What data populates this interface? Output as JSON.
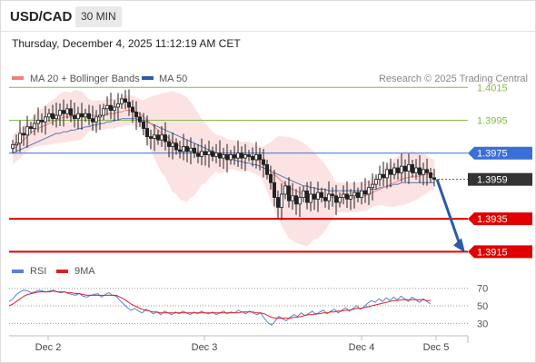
{
  "header": {
    "symbol": "USD/CAD",
    "timeframe": "30 MIN",
    "datetime": "Thursday, December 4, 2025 11:12:19 AM CET"
  },
  "legend": {
    "ma20_label": "MA 20 + Bollinger Bands",
    "ma20_color": "#f08080",
    "ma50_label": "MA 50",
    "ma50_color": "#2f5aa8",
    "credit": "Research © 2025 Trading Central"
  },
  "rsi_legend": {
    "rsi_label": "RSI",
    "rsi_color": "#5b7fd6",
    "ma9_label": "9MA",
    "ma9_color": "#e02020"
  },
  "chart_data": [
    {
      "type": "candlestick",
      "ylim": [
        1.3908,
        1.4024
      ],
      "x_ticks": [
        "Dec 2",
        "Dec 3",
        "Dec 4",
        "Dec 5"
      ],
      "levels": [
        {
          "value": 1.4015,
          "label": "1.4015",
          "kind": "resistance-light",
          "color": "#86b94a"
        },
        {
          "value": 1.3995,
          "label": "1.3995",
          "kind": "resistance-light",
          "color": "#86b94a"
        },
        {
          "value": 1.3975,
          "label": "1.3975",
          "kind": "pivot",
          "color": "#3a6fd8"
        },
        {
          "value": 1.3959,
          "label": "1.3959",
          "kind": "last-price",
          "color": "#333333"
        },
        {
          "value": 1.3935,
          "label": "1.3935",
          "kind": "support",
          "color": "#e00000"
        },
        {
          "value": 1.3915,
          "label": "1.3915",
          "kind": "support",
          "color": "#e00000"
        }
      ],
      "arrow": {
        "from": 1.3959,
        "to": 1.3915,
        "color": "#2a5aa8"
      },
      "close": [
        1.398,
        1.3981,
        1.3987,
        1.3986,
        1.3991,
        1.399,
        1.3993,
        1.3995,
        1.3994,
        1.3997,
        1.3999,
        1.3996,
        1.3998,
        1.4001,
        1.3999,
        1.4002,
        1.3998,
        1.3996,
        1.3999,
        1.3997,
        1.3999,
        1.3996,
        1.3994,
        1.3997,
        1.3998,
        1.4002,
        1.4004,
        1.4001,
        1.4003,
        1.4005,
        1.4008,
        1.4006,
        1.4003,
        1.4,
        1.3997,
        1.3994,
        1.399,
        1.3985,
        1.3984,
        1.3986,
        1.3983,
        1.3986,
        1.3982,
        1.3979,
        1.3981,
        1.3977,
        1.3976,
        1.3979,
        1.3976,
        1.3978,
        1.3975,
        1.3973,
        1.3976,
        1.3974,
        1.3976,
        1.3973,
        1.3975,
        1.3972,
        1.3974,
        1.3971,
        1.3974,
        1.3972,
        1.3975,
        1.3972,
        1.3974,
        1.3973,
        1.3971,
        1.3974,
        1.3971,
        1.3968,
        1.3962,
        1.3957,
        1.3948,
        1.3942,
        1.395,
        1.3955,
        1.3946,
        1.3949,
        1.3944,
        1.3948,
        1.3952,
        1.3945,
        1.395,
        1.3947,
        1.3951,
        1.3948,
        1.3946,
        1.395,
        1.3949,
        1.3945,
        1.3948,
        1.395,
        1.3947,
        1.3949,
        1.3951,
        1.3948,
        1.3952,
        1.395,
        1.3954,
        1.3956,
        1.3959,
        1.3962,
        1.396,
        1.3965,
        1.3962,
        1.3966,
        1.3963,
        1.3967,
        1.3964,
        1.3968,
        1.3963,
        1.3966,
        1.3962,
        1.3965,
        1.3963,
        1.396,
        1.3959
      ],
      "ma20": [
        1.3977,
        1.3979,
        1.3981,
        1.3983,
        1.3985,
        1.3987,
        1.3989,
        1.399,
        1.3991,
        1.3992,
        1.3993,
        1.3994,
        1.3995,
        1.3996,
        1.3997,
        1.3997,
        1.3997,
        1.3998,
        1.3998,
        1.3998,
        1.3998,
        1.3998,
        1.3998,
        1.3998,
        1.3998,
        1.3998,
        1.3999,
        1.3999,
        1.3999,
        1.4,
        1.4,
        1.4001,
        1.4001,
        1.4001,
        1.4,
        1.3999,
        1.3997,
        1.3995,
        1.3993,
        1.3991,
        1.3989,
        1.3987,
        1.3986,
        1.3984,
        1.3982,
        1.3981,
        1.3979,
        1.3978,
        1.3977,
        1.3977,
        1.3976,
        1.3976,
        1.3976,
        1.3975,
        1.3975,
        1.3975,
        1.3975,
        1.3974,
        1.3974,
        1.3974,
        1.3974,
        1.3974,
        1.3973,
        1.3973,
        1.3973,
        1.3973,
        1.3972,
        1.3971,
        1.397,
        1.3968,
        1.3966,
        1.3964,
        1.3962,
        1.396,
        1.3958,
        1.3956,
        1.3954,
        1.3953,
        1.3952,
        1.3951,
        1.395,
        1.3949,
        1.3949,
        1.3949,
        1.3948,
        1.3948,
        1.3948,
        1.3948,
        1.3948,
        1.3948,
        1.3948,
        1.3948,
        1.3948,
        1.3948,
        1.3948,
        1.3948,
        1.3949,
        1.3949,
        1.395,
        1.3951,
        1.3952,
        1.3953,
        1.3954,
        1.3955,
        1.3956,
        1.3957,
        1.3958,
        1.3959,
        1.396,
        1.396,
        1.3961,
        1.3961,
        1.3961,
        1.3962,
        1.3962,
        1.3962,
        1.3962
      ],
      "ma50": [
        1.3975,
        1.3976,
        1.3977,
        1.3978,
        1.3979,
        1.398,
        1.3981,
        1.3982,
        1.3983,
        1.3984,
        1.3985,
        1.3986,
        1.3987,
        1.3987,
        1.3988,
        1.3988,
        1.3989,
        1.3989,
        1.399,
        1.399,
        1.3991,
        1.3991,
        1.3992,
        1.3992,
        1.3993,
        1.3993,
        1.3994,
        1.3994,
        1.3995,
        1.3995,
        1.3996,
        1.3996,
        1.3996,
        1.3996,
        1.3996,
        1.3995,
        1.3995,
        1.3994,
        1.3993,
        1.3992,
        1.3991,
        1.399,
        1.3989,
        1.3988,
        1.3987,
        1.3986,
        1.3985,
        1.3984,
        1.3983,
        1.3982,
        1.3981,
        1.398,
        1.3979,
        1.3978,
        1.3977,
        1.3976,
        1.3975,
        1.3974,
        1.3973,
        1.3972,
        1.3971,
        1.3971,
        1.397,
        1.397,
        1.3969,
        1.3969,
        1.3968,
        1.3968,
        1.3967,
        1.3966,
        1.3965,
        1.3964,
        1.3963,
        1.3962,
        1.3961,
        1.396,
        1.3959,
        1.3958,
        1.3957,
        1.3956,
        1.3955,
        1.3955,
        1.3954,
        1.3954,
        1.3953,
        1.3953,
        1.3953,
        1.3952,
        1.3952,
        1.3952,
        1.3952,
        1.3952,
        1.3952,
        1.3952,
        1.3952,
        1.3952,
        1.3952,
        1.3952,
        1.3953,
        1.3953,
        1.3953,
        1.3954,
        1.3954,
        1.3955,
        1.3955,
        1.3956,
        1.3956,
        1.3957,
        1.3957,
        1.3957,
        1.3957,
        1.3957,
        1.3957,
        1.3957,
        1.3957,
        1.3957,
        1.3957
      ]
    },
    {
      "type": "line",
      "ylim": [
        20,
        78
      ],
      "ticks": [
        30,
        50,
        70
      ],
      "tick_labels": [
        "30",
        "50",
        "70"
      ],
      "series": [
        {
          "name": "RSI",
          "values": [
            55,
            58,
            63,
            66,
            68,
            67,
            65,
            66,
            68,
            67,
            66,
            67,
            68,
            66,
            65,
            66,
            64,
            63,
            62,
            64,
            61,
            60,
            62,
            63,
            64,
            60,
            63,
            65,
            62,
            61,
            56,
            52,
            48,
            45,
            47,
            44,
            42,
            46,
            44,
            41,
            43,
            40,
            44,
            42,
            40,
            43,
            41,
            44,
            42,
            40,
            43,
            41,
            44,
            42,
            41,
            43,
            40,
            42,
            44,
            41,
            43,
            42,
            45,
            43,
            41,
            44,
            42,
            40,
            42,
            36,
            31,
            28,
            33,
            38,
            35,
            33,
            37,
            40,
            38,
            42,
            39,
            41,
            44,
            40,
            43,
            45,
            41,
            44,
            46,
            42,
            45,
            48,
            44,
            47,
            50,
            46,
            49,
            53,
            56,
            54,
            58,
            55,
            59,
            56,
            60,
            57,
            61,
            58,
            55,
            60,
            57,
            54,
            58,
            55,
            52
          ]
        },
        {
          "name": "9MA",
          "values": [
            50,
            52,
            55,
            58,
            61,
            63,
            64,
            65,
            66,
            66,
            66,
            66,
            67,
            66,
            66,
            66,
            65,
            65,
            64,
            64,
            63,
            62,
            62,
            62,
            62,
            62,
            62,
            62,
            62,
            62,
            60,
            58,
            55,
            52,
            50,
            48,
            46,
            45,
            44,
            43,
            43,
            42,
            42,
            42,
            42,
            42,
            42,
            42,
            42,
            42,
            42,
            42,
            42,
            42,
            42,
            42,
            42,
            42,
            42,
            42,
            42,
            42,
            42,
            43,
            43,
            43,
            43,
            42,
            42,
            41,
            39,
            37,
            36,
            36,
            36,
            36,
            36,
            37,
            37,
            38,
            39,
            40,
            40,
            41,
            41,
            42,
            42,
            43,
            43,
            44,
            44,
            45,
            45,
            46,
            47,
            47,
            48,
            49,
            50,
            51,
            52,
            53,
            54,
            55,
            56,
            56,
            57,
            57,
            57,
            57,
            57,
            57,
            57,
            56,
            56
          ]
        }
      ]
    }
  ]
}
